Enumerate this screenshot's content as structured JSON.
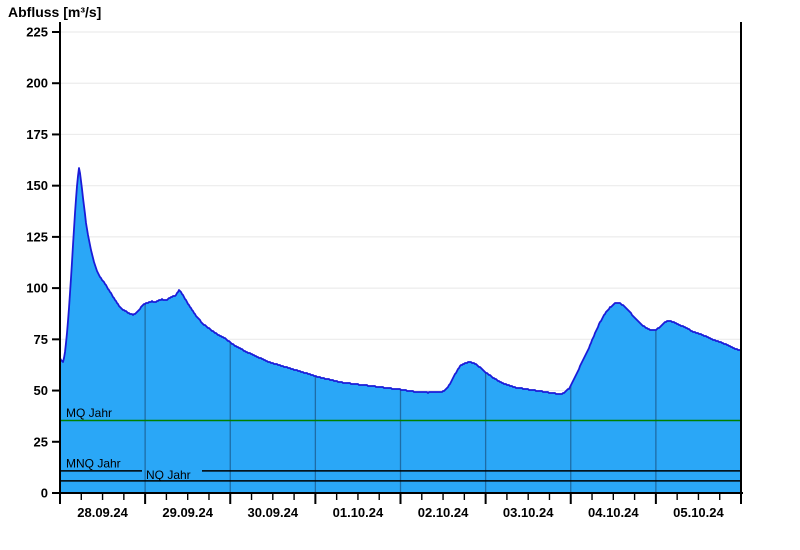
{
  "title": "Abfluss [m³/s]",
  "colors": {
    "background": "#ffffff",
    "area_fill": "#2aa7f7",
    "curve_stroke": "#1b1bd8",
    "day_separator_line": "#1e6ca6",
    "grid_line": "#ececec",
    "axis": "#000000",
    "text": "#000000",
    "mq_line_green": "#008000",
    "mnq_nq_line_black": "#000000"
  },
  "axes": {
    "y": {
      "tick_labels": [
        "0",
        "25",
        "50",
        "75",
        "100",
        "125",
        "150",
        "175",
        "200",
        "225"
      ],
      "tick_values": [
        0,
        25,
        50,
        75,
        100,
        125,
        150,
        175,
        200,
        225
      ],
      "max": 225
    },
    "x": {
      "labels": [
        "28.09.24",
        "29.09.24",
        "30.09.24",
        "01.10.24",
        "02.10.24",
        "03.10.24",
        "04.10.24",
        "05.10.24"
      ],
      "days": 8,
      "minor_ticks_per_day": 4
    }
  },
  "reference_lines": [
    {
      "id": "mq",
      "label": "MQ Jahr",
      "value": 35.4,
      "color": "#008000"
    },
    {
      "id": "mnq",
      "label": "MNQ Jahr",
      "value": 10.8,
      "color": "#000000"
    },
    {
      "id": "nq",
      "label": "NQ Jahr",
      "value": 5.9,
      "color": "#000000"
    }
  ],
  "chart_data": {
    "type": "area",
    "title": "Abfluss [m³/s]",
    "ylabel": "Abfluss [m³/s]",
    "xlabel": "",
    "x_unit": "days since 28.09.24 00:00",
    "x_tick_labels": [
      "28.09.24",
      "29.09.24",
      "30.09.24",
      "01.10.24",
      "02.10.24",
      "03.10.24",
      "04.10.24",
      "05.10.24"
    ],
    "x_days": 8,
    "ylim": [
      0,
      225
    ],
    "grid": "horizontal-only",
    "legend": "none",
    "reference_lines": [
      {
        "label": "MQ Jahr",
        "value": 35.4
      },
      {
        "label": "MNQ Jahr",
        "value": 10.8
      },
      {
        "label": "NQ Jahr",
        "value": 5.9
      }
    ],
    "series": [
      {
        "name": "Abfluss",
        "unit": "m³/s",
        "points": [
          [
            0.0,
            66
          ],
          [
            0.02,
            64.5
          ],
          [
            0.04,
            64
          ],
          [
            0.06,
            69
          ],
          [
            0.08,
            77
          ],
          [
            0.1,
            87
          ],
          [
            0.12,
            99
          ],
          [
            0.14,
            112
          ],
          [
            0.16,
            126
          ],
          [
            0.18,
            139
          ],
          [
            0.2,
            150
          ],
          [
            0.215,
            156
          ],
          [
            0.225,
            159
          ],
          [
            0.245,
            153
          ],
          [
            0.265,
            146
          ],
          [
            0.285,
            139
          ],
          [
            0.305,
            132
          ],
          [
            0.335,
            124.5
          ],
          [
            0.365,
            118.5
          ],
          [
            0.395,
            113.5
          ],
          [
            0.425,
            109.5
          ],
          [
            0.455,
            106.5
          ],
          [
            0.485,
            104.5
          ],
          [
            0.515,
            103
          ],
          [
            0.545,
            101
          ],
          [
            0.575,
            99
          ],
          [
            0.605,
            97
          ],
          [
            0.635,
            95
          ],
          [
            0.665,
            93
          ],
          [
            0.7,
            91
          ],
          [
            0.74,
            89.5
          ],
          [
            0.78,
            88.5
          ],
          [
            0.82,
            87.5
          ],
          [
            0.86,
            87
          ],
          [
            0.9,
            88
          ],
          [
            0.93,
            89.5
          ],
          [
            0.96,
            91
          ],
          [
            1.0,
            92.5
          ],
          [
            1.04,
            93
          ],
          [
            1.08,
            93.5
          ],
          [
            1.12,
            93
          ],
          [
            1.16,
            94
          ],
          [
            1.2,
            94.5
          ],
          [
            1.24,
            94
          ],
          [
            1.28,
            95
          ],
          [
            1.32,
            96
          ],
          [
            1.36,
            96.5
          ],
          [
            1.38,
            98
          ],
          [
            1.4,
            99
          ],
          [
            1.43,
            97.5
          ],
          [
            1.46,
            95.5
          ],
          [
            1.5,
            92.5
          ],
          [
            1.54,
            90
          ],
          [
            1.58,
            87.5
          ],
          [
            1.62,
            85.5
          ],
          [
            1.66,
            83.5
          ],
          [
            1.71,
            81.5
          ],
          [
            1.76,
            80
          ],
          [
            1.81,
            78.5
          ],
          [
            1.87,
            77
          ],
          [
            1.94,
            75.5
          ],
          [
            2.0,
            73.5
          ],
          [
            2.07,
            71.5
          ],
          [
            2.14,
            70
          ],
          [
            2.21,
            68.5
          ],
          [
            2.29,
            67
          ],
          [
            2.37,
            65.5
          ],
          [
            2.45,
            64
          ],
          [
            2.53,
            63
          ],
          [
            2.61,
            62
          ],
          [
            2.69,
            61
          ],
          [
            2.77,
            60
          ],
          [
            2.85,
            59
          ],
          [
            2.93,
            58
          ],
          [
            3.0,
            57
          ],
          [
            3.1,
            56
          ],
          [
            3.2,
            55
          ],
          [
            3.3,
            54
          ],
          [
            3.4,
            53.5
          ],
          [
            3.5,
            53
          ],
          [
            3.6,
            52.5
          ],
          [
            3.7,
            52
          ],
          [
            3.8,
            51.5
          ],
          [
            3.9,
            51
          ],
          [
            4.0,
            50.5
          ],
          [
            4.08,
            50
          ],
          [
            4.16,
            49.5
          ],
          [
            4.24,
            49.5
          ],
          [
            4.32,
            49
          ],
          [
            4.4,
            49.5
          ],
          [
            4.46,
            49
          ],
          [
            4.52,
            50
          ],
          [
            4.58,
            53
          ],
          [
            4.64,
            58
          ],
          [
            4.7,
            62
          ],
          [
            4.76,
            63.5
          ],
          [
            4.82,
            64
          ],
          [
            4.88,
            63
          ],
          [
            4.93,
            61.5
          ],
          [
            4.98,
            59.5
          ],
          [
            5.03,
            58
          ],
          [
            5.08,
            56.5
          ],
          [
            5.14,
            55
          ],
          [
            5.21,
            53.5
          ],
          [
            5.28,
            52.5
          ],
          [
            5.35,
            51.5
          ],
          [
            5.43,
            51
          ],
          [
            5.51,
            50.5
          ],
          [
            5.59,
            50
          ],
          [
            5.67,
            49.5
          ],
          [
            5.75,
            49
          ],
          [
            5.83,
            48.5
          ],
          [
            5.9,
            48.5
          ],
          [
            5.94,
            49.5
          ],
          [
            5.98,
            51
          ],
          [
            6.02,
            54
          ],
          [
            6.06,
            57.5
          ],
          [
            6.1,
            61
          ],
          [
            6.14,
            64.5
          ],
          [
            6.18,
            68
          ],
          [
            6.22,
            71.5
          ],
          [
            6.26,
            75.5
          ],
          [
            6.3,
            79.5
          ],
          [
            6.34,
            83
          ],
          [
            6.38,
            86
          ],
          [
            6.42,
            88.5
          ],
          [
            6.46,
            90.5
          ],
          [
            6.5,
            92
          ],
          [
            6.54,
            93
          ],
          [
            6.58,
            92.5
          ],
          [
            6.62,
            91.5
          ],
          [
            6.66,
            90
          ],
          [
            6.7,
            88
          ],
          [
            6.74,
            86
          ],
          [
            6.79,
            84
          ],
          [
            6.84,
            82
          ],
          [
            6.89,
            80.5
          ],
          [
            6.94,
            79.5
          ],
          [
            6.99,
            79.5
          ],
          [
            7.03,
            80.5
          ],
          [
            7.07,
            82
          ],
          [
            7.11,
            83.5
          ],
          [
            7.15,
            84
          ],
          [
            7.2,
            83.5
          ],
          [
            7.25,
            82.5
          ],
          [
            7.31,
            81.5
          ],
          [
            7.38,
            80
          ],
          [
            7.45,
            78.5
          ],
          [
            7.53,
            77.5
          ],
          [
            7.61,
            76
          ],
          [
            7.69,
            74.5
          ],
          [
            7.77,
            73.5
          ],
          [
            7.85,
            72
          ],
          [
            7.93,
            70.5
          ],
          [
            8.0,
            69.5
          ]
        ]
      }
    ]
  }
}
